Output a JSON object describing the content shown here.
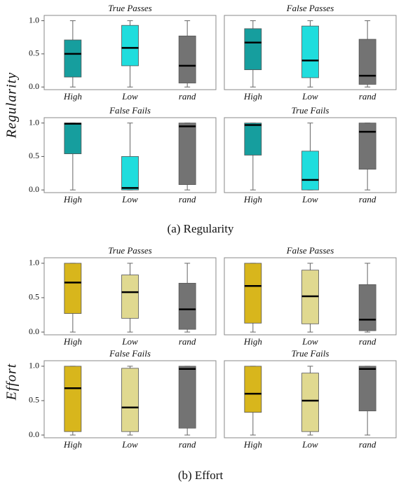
{
  "groups": [
    {
      "caption": "(a) Regularity",
      "ylabel": "Regularity"
    },
    {
      "caption": "(b) Effort",
      "ylabel": "Effort"
    }
  ],
  "chart_data": [
    {
      "type": "box",
      "title": "True Passes",
      "categories": [
        "High",
        "Low",
        "rand"
      ],
      "colors": [
        "#169e9e",
        "#1fdddd",
        "#737373"
      ],
      "boxes": [
        {
          "min": 0,
          "q1": 0.15,
          "median": 0.5,
          "q3": 0.71,
          "max": 1
        },
        {
          "min": 0,
          "q1": 0.32,
          "median": 0.59,
          "q3": 0.93,
          "max": 1
        },
        {
          "min": 0,
          "q1": 0.06,
          "median": 0.32,
          "q3": 0.77,
          "max": 1
        }
      ],
      "ylim": [
        -0.04,
        1.08
      ],
      "yticks": [
        {
          "value": 0,
          "label": "0.0"
        },
        {
          "value": 0.5,
          "label": "0.5"
        },
        {
          "value": 1,
          "label": "1.0"
        }
      ]
    },
    {
      "type": "box",
      "title": "False Passes",
      "categories": [
        "High",
        "Low",
        "rand"
      ],
      "colors": [
        "#169e9e",
        "#1fdddd",
        "#737373"
      ],
      "boxes": [
        {
          "min": 0,
          "q1": 0.26,
          "median": 0.67,
          "q3": 0.88,
          "max": 1
        },
        {
          "min": 0,
          "q1": 0.14,
          "median": 0.4,
          "q3": 0.92,
          "max": 1
        },
        {
          "min": 0,
          "q1": 0.04,
          "median": 0.17,
          "q3": 0.72,
          "max": 1
        }
      ],
      "ylim": [
        -0.04,
        1.08
      ],
      "yticks": []
    },
    {
      "type": "box",
      "title": "False Fails",
      "categories": [
        "High",
        "Low",
        "rand"
      ],
      "colors": [
        "#169e9e",
        "#1fdddd",
        "#737373"
      ],
      "boxes": [
        {
          "min": 0,
          "q1": 0.54,
          "median": 0.99,
          "q3": 1,
          "max": 1
        },
        {
          "min": 0,
          "q1": 0,
          "median": 0.03,
          "q3": 0.5,
          "max": 1
        },
        {
          "min": 0,
          "q1": 0.08,
          "median": 0.95,
          "q3": 1,
          "max": 1
        }
      ],
      "ylim": [
        -0.04,
        1.08
      ],
      "yticks": [
        {
          "value": 0,
          "label": "0.0"
        },
        {
          "value": 0.5,
          "label": "0.5"
        },
        {
          "value": 1,
          "label": "1.0"
        }
      ]
    },
    {
      "type": "box",
      "title": "True Fails",
      "categories": [
        "High",
        "Low",
        "rand"
      ],
      "colors": [
        "#169e9e",
        "#1fdddd",
        "#737373"
      ],
      "boxes": [
        {
          "min": 0,
          "q1": 0.52,
          "median": 0.97,
          "q3": 1,
          "max": 1
        },
        {
          "min": 0,
          "q1": 0,
          "median": 0.15,
          "q3": 0.58,
          "max": 1
        },
        {
          "min": 0,
          "q1": 0.31,
          "median": 0.87,
          "q3": 1,
          "max": 1
        }
      ],
      "ylim": [
        -0.04,
        1.08
      ],
      "yticks": []
    },
    {
      "type": "box",
      "title": "True Passes",
      "categories": [
        "High",
        "Low",
        "rand"
      ],
      "colors": [
        "#d8b61c",
        "#e0d990",
        "#737373"
      ],
      "boxes": [
        {
          "min": 0,
          "q1": 0.27,
          "median": 0.72,
          "q3": 1,
          "max": 1
        },
        {
          "min": 0,
          "q1": 0.2,
          "median": 0.58,
          "q3": 0.83,
          "max": 1
        },
        {
          "min": 0,
          "q1": 0.04,
          "median": 0.33,
          "q3": 0.71,
          "max": 1
        }
      ],
      "ylim": [
        -0.04,
        1.08
      ],
      "yticks": [
        {
          "value": 0,
          "label": "0.0"
        },
        {
          "value": 0.5,
          "label": "0.5"
        },
        {
          "value": 1,
          "label": "1.0"
        }
      ]
    },
    {
      "type": "box",
      "title": "False Passes",
      "categories": [
        "High",
        "Low",
        "rand"
      ],
      "colors": [
        "#d8b61c",
        "#e0d990",
        "#737373"
      ],
      "boxes": [
        {
          "min": 0,
          "q1": 0.13,
          "median": 0.67,
          "q3": 1,
          "max": 1
        },
        {
          "min": 0,
          "q1": 0.12,
          "median": 0.52,
          "q3": 0.9,
          "max": 1
        },
        {
          "min": 0,
          "q1": 0.02,
          "median": 0.18,
          "q3": 0.69,
          "max": 1
        }
      ],
      "ylim": [
        -0.04,
        1.08
      ],
      "yticks": []
    },
    {
      "type": "box",
      "title": "False Fails",
      "categories": [
        "High",
        "Low",
        "rand"
      ],
      "colors": [
        "#d8b61c",
        "#e0d990",
        "#737373"
      ],
      "boxes": [
        {
          "min": 0,
          "q1": 0.05,
          "median": 0.68,
          "q3": 1,
          "max": 1
        },
        {
          "min": 0,
          "q1": 0.05,
          "median": 0.4,
          "q3": 0.97,
          "max": 1
        },
        {
          "min": 0,
          "q1": 0.1,
          "median": 0.96,
          "q3": 1,
          "max": 1
        }
      ],
      "ylim": [
        -0.04,
        1.08
      ],
      "yticks": [
        {
          "value": 0,
          "label": "0.0"
        },
        {
          "value": 0.5,
          "label": "0.5"
        },
        {
          "value": 1,
          "label": "1.0"
        }
      ]
    },
    {
      "type": "box",
      "title": "True Fails",
      "categories": [
        "High",
        "Low",
        "rand"
      ],
      "colors": [
        "#d8b61c",
        "#e0d990",
        "#737373"
      ],
      "boxes": [
        {
          "min": 0,
          "q1": 0.33,
          "median": 0.6,
          "q3": 1,
          "max": 1
        },
        {
          "min": 0,
          "q1": 0.05,
          "median": 0.5,
          "q3": 0.9,
          "max": 1
        },
        {
          "min": 0,
          "q1": 0.35,
          "median": 0.96,
          "q3": 1,
          "max": 1
        }
      ],
      "ylim": [
        -0.04,
        1.08
      ],
      "yticks": []
    }
  ]
}
